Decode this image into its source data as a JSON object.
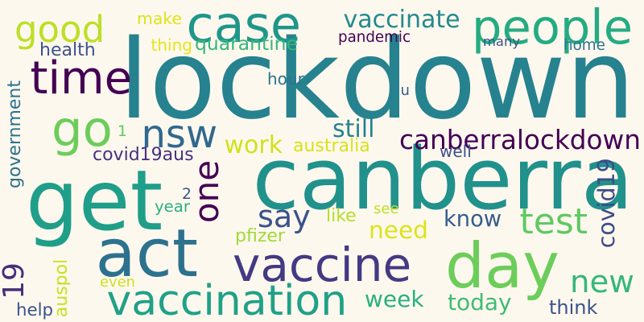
{
  "words": [
    {
      "text": "lockdown",
      "color": "#26828e"
    },
    {
      "text": "canberra",
      "color": "#21918c"
    },
    {
      "text": "get",
      "color": "#1f9e89"
    },
    {
      "text": "act",
      "color": "#2c728e"
    },
    {
      "text": "vaccine",
      "color": "#443983"
    },
    {
      "text": "day",
      "color": "#6ccd5a"
    },
    {
      "text": "case",
      "color": "#1f968b"
    },
    {
      "text": "people",
      "color": "#25ab82"
    },
    {
      "text": "time",
      "color": "#440154"
    },
    {
      "text": "go",
      "color": "#6ccd5a"
    },
    {
      "text": "nsw",
      "color": "#31688e"
    },
    {
      "text": "good",
      "color": "#bddf26"
    },
    {
      "text": "vaccination",
      "color": "#1fa187"
    },
    {
      "text": "19",
      "color": "#472c7a"
    },
    {
      "text": "one",
      "color": "#440154"
    },
    {
      "text": "say",
      "color": "#3b528b"
    },
    {
      "text": "test",
      "color": "#5ec962"
    },
    {
      "text": "new",
      "color": "#35b779"
    },
    {
      "text": "canberralockdown",
      "color": "#440154"
    },
    {
      "text": "vaccinate",
      "color": "#238a8d"
    },
    {
      "text": "covid19",
      "color": "#3e4a89"
    },
    {
      "text": "still",
      "color": "#26828e"
    },
    {
      "text": "work",
      "color": "#d0e11c"
    },
    {
      "text": "need",
      "color": "#dde318"
    },
    {
      "text": "know",
      "color": "#365c8d"
    },
    {
      "text": "week",
      "color": "#2ab07f"
    },
    {
      "text": "today",
      "color": "#3fbc73"
    },
    {
      "text": "covid19aus",
      "color": "#46327e"
    },
    {
      "text": "australia",
      "color": "#d8e219"
    },
    {
      "text": "quarantine",
      "color": "#35b779"
    },
    {
      "text": "health",
      "color": "#3b528b"
    },
    {
      "text": "make",
      "color": "#dde318"
    },
    {
      "text": "thing",
      "color": "#e5e419"
    },
    {
      "text": "pandemic",
      "color": "#440154"
    },
    {
      "text": "many",
      "color": "#3b528b"
    },
    {
      "text": "home",
      "color": "#2c728e"
    },
    {
      "text": "hour",
      "color": "#2c728e"
    },
    {
      "text": "u",
      "color": "#365c8d"
    },
    {
      "text": "government",
      "color": "#2c728e"
    },
    {
      "text": "well",
      "color": "#3b528b"
    },
    {
      "text": "1",
      "color": "#5ec962"
    },
    {
      "text": "pfizer",
      "color": "#a0da39"
    },
    {
      "text": "like",
      "color": "#b5de2b"
    },
    {
      "text": "see",
      "color": "#bddf26"
    },
    {
      "text": "year",
      "color": "#2ab07f"
    },
    {
      "text": "2",
      "color": "#3b528b"
    },
    {
      "text": "auspol",
      "color": "#c8e020"
    },
    {
      "text": "even",
      "color": "#cae11f"
    },
    {
      "text": "help",
      "color": "#3b528b"
    },
    {
      "text": "think",
      "color": "#3b528b"
    }
  ]
}
